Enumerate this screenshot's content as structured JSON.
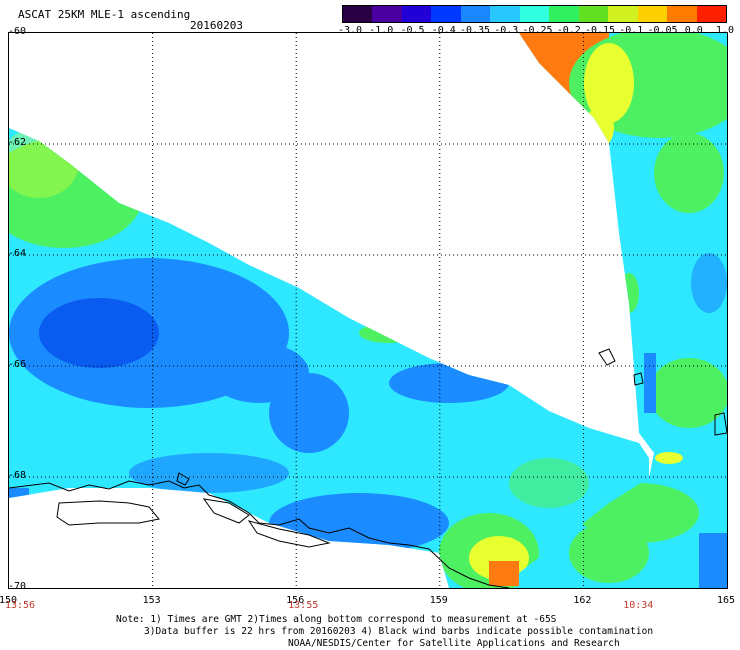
{
  "header": {
    "title": "ASCAT 25KM MLE-1 ascending",
    "date": "20160203"
  },
  "colorbar": {
    "labels": [
      "-3.0",
      "-1.0",
      "-0.5",
      "-0.4",
      "-0.35",
      "-0.3",
      "-0.25",
      "-0.2",
      "-0.15",
      "-0.1",
      "-0.05",
      "0.0",
      "1.0"
    ],
    "colors": [
      "#2a0044",
      "#4a00a0",
      "#2200d8",
      "#0038ff",
      "#1c86ff",
      "#28c8ff",
      "#30ffe0",
      "#30f060",
      "#60e020",
      "#d0f020",
      "#ffd000",
      "#ff7a00",
      "#ff2000"
    ]
  },
  "map": {
    "lat_labels": [
      "-60",
      "-62",
      "-64",
      "-66",
      "-68",
      "-70"
    ],
    "lon_labels": [
      "150",
      "153",
      "156",
      "159",
      "162",
      "165"
    ],
    "lat_range": [
      -70,
      -60
    ],
    "lon_range": [
      150,
      165
    ],
    "colors": {
      "swath_cyan": "#2ee8ff",
      "swath_blue": "#1a8cff",
      "swath_deep_blue": "#0a5cf0",
      "swath_green": "#4cf060",
      "swath_yellow": "#e8ff30",
      "swath_orange": "#ff7a10",
      "coast": "#000000"
    }
  },
  "times": [
    {
      "lon": "150",
      "text": "13:56"
    },
    {
      "lon": "156",
      "text": "13:55"
    },
    {
      "lon": "163",
      "text": "10:34"
    }
  ],
  "notes": {
    "line1": "Note: 1) Times are GMT 2)Times along bottom correspond to measurement at -65S",
    "line2": "3)Data buffer is 22 hrs from 20160203 4) Black wind barbs indicate possible contamination",
    "line3": "NOAA/NESDIS/Center for Satellite Applications and Research"
  }
}
